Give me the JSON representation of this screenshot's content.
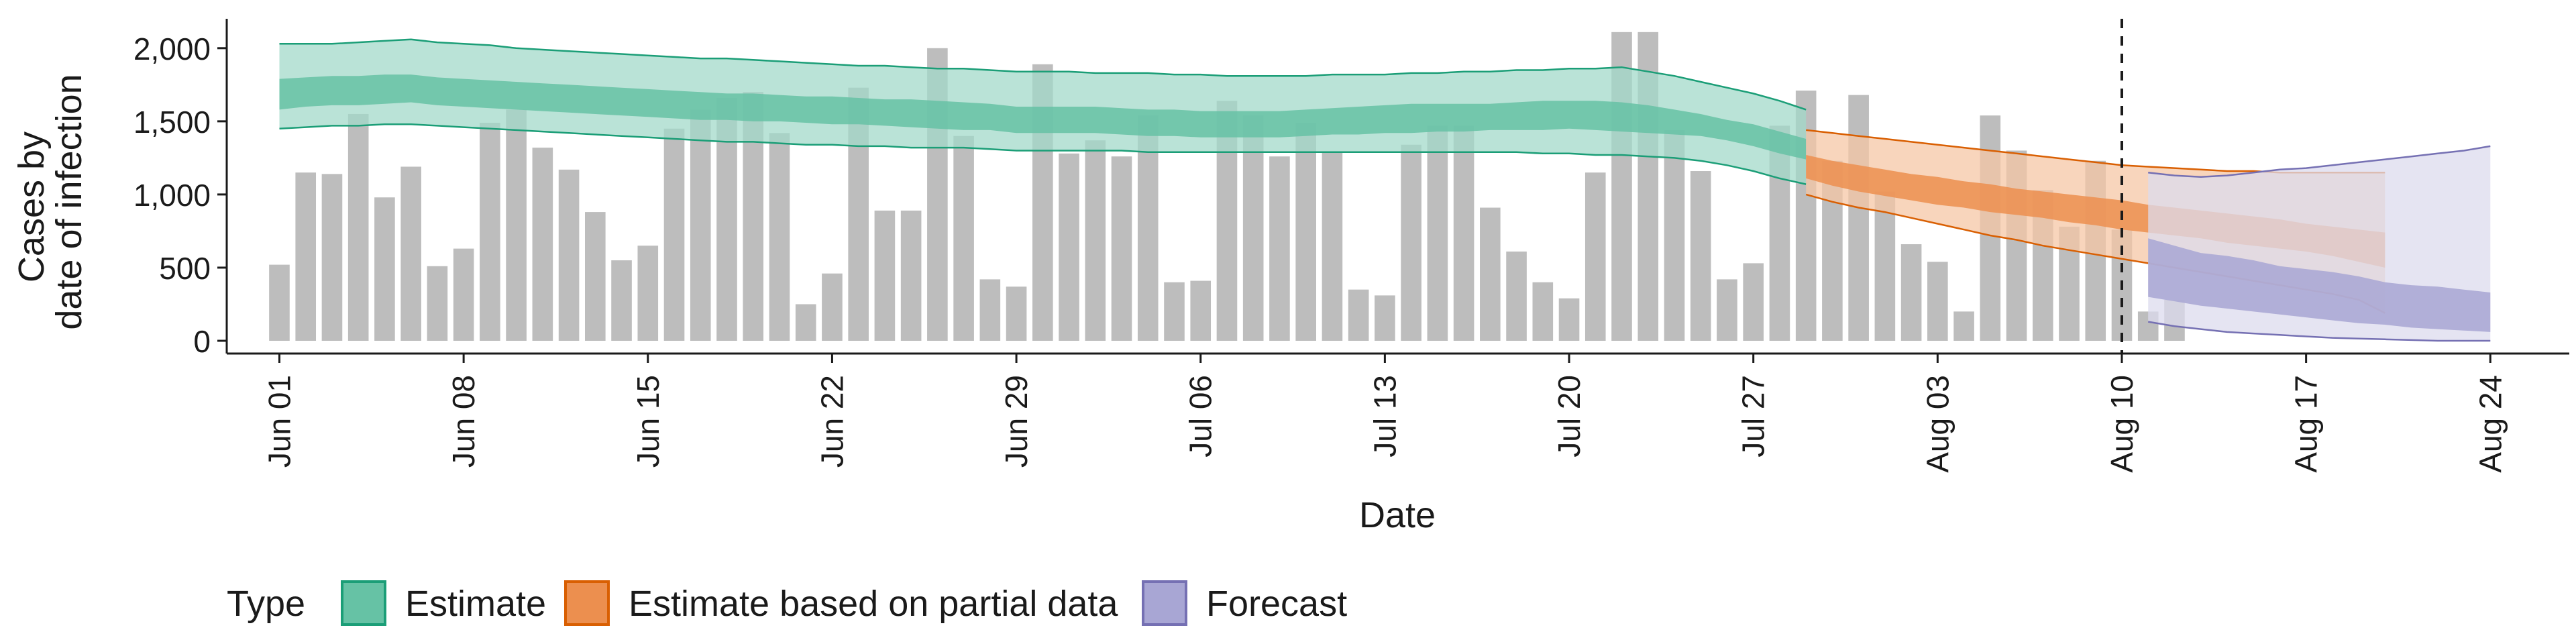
{
  "chart_data": {
    "type": "bar",
    "title": "",
    "xlabel": "Date",
    "ylabel": [
      "Cases by",
      "date of infection"
    ],
    "ylim": [
      0,
      2100
    ],
    "yticks": [
      0,
      500,
      1000,
      1500,
      2000
    ],
    "ytick_labels": [
      "0",
      "500",
      "1,000",
      "1,500",
      "2,000"
    ],
    "xlim": [
      "2020-05-30",
      "2020-08-27"
    ],
    "xticks": [
      "2020-06-01",
      "2020-06-08",
      "2020-06-15",
      "2020-06-22",
      "2020-06-29",
      "2020-07-06",
      "2020-07-13",
      "2020-07-20",
      "2020-07-27",
      "2020-08-03",
      "2020-08-10",
      "2020-08-17",
      "2020-08-24"
    ],
    "xtick_labels": [
      "Jun 01",
      "Jun 08",
      "Jun 15",
      "Jun 22",
      "Jun 29",
      "Jul 06",
      "Jul 13",
      "Jul 20",
      "Jul 27",
      "Aug 03",
      "Aug 10",
      "Aug 17",
      "Aug 24"
    ],
    "grid": false,
    "vline": "2020-08-10",
    "legend": {
      "title": "Type",
      "position": "bottom-left",
      "entries": [
        {
          "label": "Estimate",
          "fill": "#66c2a5",
          "stroke": "#1b9e77"
        },
        {
          "label": "Estimate based on partial data",
          "fill": "#f0a36b",
          "stroke": "#d95f02"
        },
        {
          "label": "Forecast",
          "fill": "#a8a6d4",
          "stroke": "#7570b3"
        }
      ]
    },
    "bars": {
      "name": "Reported cases",
      "color": "#bdbdbd",
      "start_date": "2020-06-01",
      "values": [
        520,
        1150,
        1140,
        1550,
        980,
        1190,
        510,
        630,
        1490,
        1580,
        1320,
        1170,
        880,
        550,
        650,
        1450,
        1580,
        1660,
        1700,
        1420,
        250,
        460,
        1730,
        890,
        890,
        2000,
        1400,
        420,
        370,
        1890,
        1280,
        1370,
        1260,
        1540,
        400,
        410,
        1640,
        1540,
        1260,
        1490,
        1290,
        350,
        310,
        1340,
        1470,
        1470,
        910,
        610,
        400,
        290,
        1150,
        2110,
        2110,
        1440,
        1160,
        420,
        530,
        1470,
        1710,
        1230,
        1680,
        1020,
        660,
        540,
        200,
        1540,
        1300,
        1030,
        780,
        1230,
        760,
        200,
        280
      ]
    },
    "ribbons": [
      {
        "name": "Estimate",
        "start_date": "2020-06-01",
        "outer_color": "#a3dac9",
        "inner_color": "#66c2a5",
        "edge_color": "#1b9e77",
        "lower90": [
          1450,
          1460,
          1470,
          1470,
          1480,
          1480,
          1470,
          1460,
          1450,
          1440,
          1430,
          1420,
          1410,
          1400,
          1390,
          1380,
          1370,
          1360,
          1360,
          1350,
          1340,
          1340,
          1330,
          1330,
          1320,
          1320,
          1320,
          1310,
          1300,
          1300,
          1300,
          1300,
          1300,
          1290,
          1290,
          1290,
          1290,
          1290,
          1290,
          1290,
          1290,
          1290,
          1290,
          1290,
          1290,
          1290,
          1290,
          1290,
          1280,
          1280,
          1270,
          1270,
          1260,
          1250,
          1230,
          1200,
          1160,
          1110,
          1070
        ],
        "upper90": [
          2030,
          2030,
          2030,
          2040,
          2050,
          2060,
          2040,
          2030,
          2020,
          2000,
          1990,
          1980,
          1970,
          1960,
          1950,
          1940,
          1930,
          1930,
          1920,
          1910,
          1900,
          1890,
          1880,
          1880,
          1870,
          1860,
          1860,
          1850,
          1840,
          1840,
          1840,
          1830,
          1830,
          1830,
          1820,
          1820,
          1810,
          1810,
          1810,
          1810,
          1820,
          1820,
          1820,
          1830,
          1830,
          1840,
          1840,
          1850,
          1850,
          1860,
          1860,
          1870,
          1840,
          1810,
          1770,
          1730,
          1690,
          1640,
          1580
        ],
        "lower50": [
          1580,
          1600,
          1610,
          1610,
          1620,
          1630,
          1610,
          1600,
          1590,
          1580,
          1570,
          1560,
          1550,
          1540,
          1530,
          1520,
          1510,
          1510,
          1500,
          1500,
          1490,
          1480,
          1480,
          1470,
          1460,
          1450,
          1440,
          1440,
          1420,
          1420,
          1420,
          1420,
          1410,
          1400,
          1400,
          1390,
          1390,
          1390,
          1390,
          1400,
          1410,
          1410,
          1420,
          1420,
          1430,
          1430,
          1440,
          1440,
          1440,
          1450,
          1440,
          1430,
          1420,
          1410,
          1400,
          1370,
          1330,
          1280,
          1240
        ],
        "upper50": [
          1790,
          1800,
          1810,
          1810,
          1820,
          1820,
          1800,
          1790,
          1780,
          1770,
          1760,
          1750,
          1740,
          1730,
          1720,
          1710,
          1700,
          1690,
          1690,
          1680,
          1670,
          1670,
          1660,
          1650,
          1650,
          1640,
          1630,
          1620,
          1600,
          1600,
          1600,
          1600,
          1590,
          1580,
          1580,
          1570,
          1570,
          1570,
          1570,
          1580,
          1590,
          1600,
          1610,
          1620,
          1620,
          1620,
          1620,
          1630,
          1640,
          1640,
          1640,
          1630,
          1610,
          1580,
          1550,
          1510,
          1480,
          1430,
          1380
        ]
      },
      {
        "name": "Estimate based on partial data",
        "start_date": "2020-07-29",
        "outer_color": "#f5c7a6",
        "inner_color": "#ec8f4f",
        "edge_color": "#d95f02",
        "lower90": [
          1000,
          950,
          910,
          880,
          840,
          800,
          760,
          720,
          690,
          650,
          620,
          590,
          560,
          530,
          500,
          470,
          440,
          410,
          380,
          350,
          320,
          280,
          190
        ],
        "upper90": [
          1440,
          1420,
          1400,
          1380,
          1360,
          1340,
          1320,
          1300,
          1280,
          1260,
          1240,
          1220,
          1200,
          1190,
          1180,
          1170,
          1160,
          1160,
          1150,
          1150,
          1150,
          1150,
          1150
        ],
        "lower50": [
          1110,
          1060,
          1020,
          990,
          960,
          930,
          910,
          880,
          860,
          840,
          810,
          790,
          760,
          740,
          720,
          700,
          670,
          650,
          630,
          610,
          580,
          540,
          500
        ],
        "upper50": [
          1270,
          1230,
          1200,
          1170,
          1140,
          1120,
          1090,
          1070,
          1040,
          1020,
          1000,
          980,
          960,
          930,
          910,
          890,
          870,
          850,
          830,
          800,
          780,
          760,
          740
        ]
      },
      {
        "name": "Forecast",
        "start_date": "2020-08-11",
        "outer_color": "#dcdbee",
        "inner_color": "#a8a6d4",
        "edge_color": "#7570b3",
        "lower90": [
          130,
          100,
          80,
          60,
          50,
          40,
          30,
          20,
          15,
          10,
          5,
          0,
          0,
          0
        ],
        "upper90": [
          1150,
          1130,
          1120,
          1130,
          1150,
          1170,
          1180,
          1200,
          1220,
          1240,
          1260,
          1280,
          1300,
          1330
        ],
        "lower50": [
          300,
          270,
          240,
          220,
          200,
          180,
          160,
          140,
          120,
          110,
          90,
          80,
          70,
          60
        ],
        "upper50": [
          700,
          650,
          600,
          580,
          550,
          510,
          490,
          470,
          440,
          400,
          380,
          370,
          350,
          330
        ]
      }
    ]
  }
}
